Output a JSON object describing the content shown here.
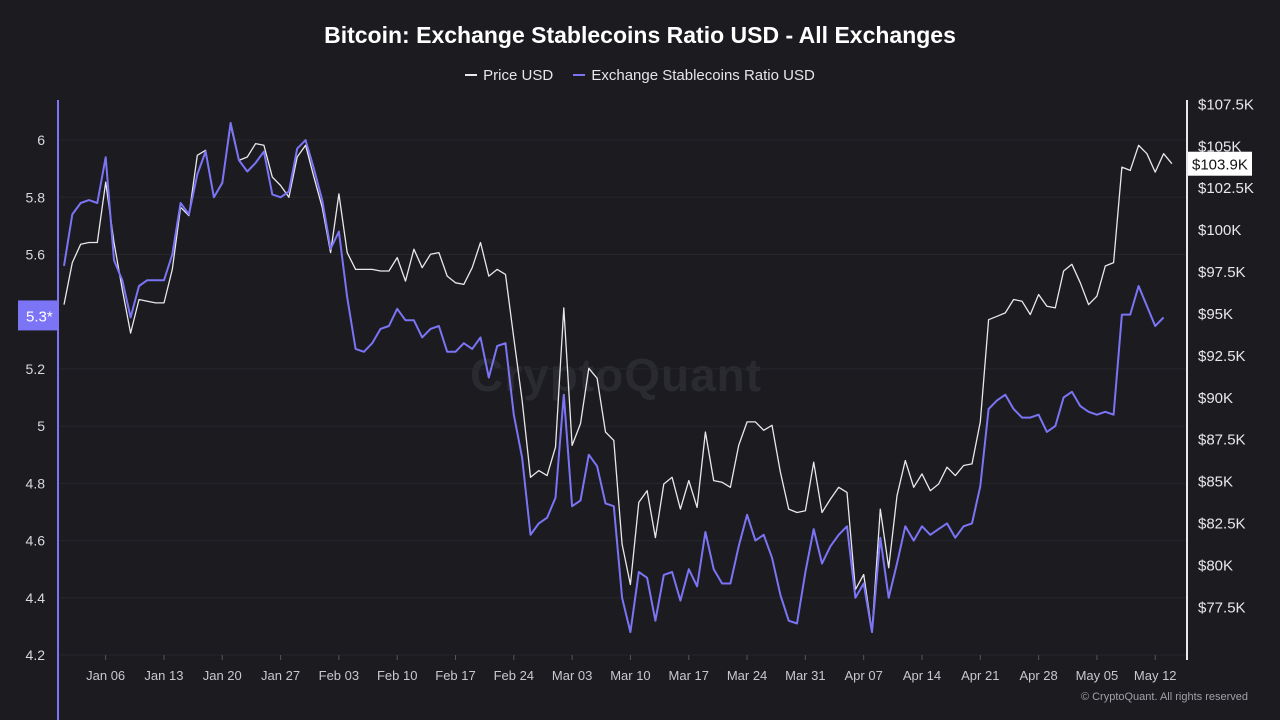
{
  "chart_data": {
    "type": "line",
    "title": "Bitcoin: Exchange Stablecoins Ratio USD - All Exchanges",
    "legend_position": "top",
    "grid": true,
    "x": [
      "Jan 01",
      "Jan 02",
      "Jan 03",
      "Jan 04",
      "Jan 05",
      "Jan 06",
      "Jan 07",
      "Jan 08",
      "Jan 09",
      "Jan 10",
      "Jan 11",
      "Jan 12",
      "Jan 13",
      "Jan 14",
      "Jan 15",
      "Jan 16",
      "Jan 17",
      "Jan 18",
      "Jan 19",
      "Jan 20",
      "Jan 21",
      "Jan 22",
      "Jan 23",
      "Jan 24",
      "Jan 25",
      "Jan 26",
      "Jan 27",
      "Jan 28",
      "Jan 29",
      "Jan 30",
      "Jan 31",
      "Feb 01",
      "Feb 02",
      "Feb 03",
      "Feb 04",
      "Feb 05",
      "Feb 06",
      "Feb 07",
      "Feb 08",
      "Feb 09",
      "Feb 10",
      "Feb 11",
      "Feb 12",
      "Feb 13",
      "Feb 14",
      "Feb 15",
      "Feb 16",
      "Feb 17",
      "Feb 18",
      "Feb 19",
      "Feb 20",
      "Feb 21",
      "Feb 22",
      "Feb 23",
      "Feb 24",
      "Feb 25",
      "Feb 26",
      "Feb 27",
      "Feb 28",
      "Mar 01",
      "Mar 02",
      "Mar 03",
      "Mar 04",
      "Mar 05",
      "Mar 06",
      "Mar 07",
      "Mar 08",
      "Mar 09",
      "Mar 10",
      "Mar 11",
      "Mar 12",
      "Mar 13",
      "Mar 14",
      "Mar 15",
      "Mar 16",
      "Mar 17",
      "Mar 18",
      "Mar 19",
      "Mar 20",
      "Mar 21",
      "Mar 22",
      "Mar 23",
      "Mar 24",
      "Mar 25",
      "Mar 26",
      "Mar 27",
      "Mar 28",
      "Mar 29",
      "Mar 30",
      "Mar 31",
      "Apr 01",
      "Apr 02",
      "Apr 03",
      "Apr 04",
      "Apr 05",
      "Apr 06",
      "Apr 07",
      "Apr 08",
      "Apr 09",
      "Apr 10",
      "Apr 11",
      "Apr 12",
      "Apr 13",
      "Apr 14",
      "Apr 15",
      "Apr 16",
      "Apr 17",
      "Apr 18",
      "Apr 19",
      "Apr 20",
      "Apr 21",
      "Apr 22",
      "Apr 23",
      "Apr 24",
      "Apr 25",
      "Apr 26",
      "Apr 27",
      "Apr 28",
      "Apr 29",
      "Apr 30",
      "May 01",
      "May 02",
      "May 03",
      "May 04",
      "May 05",
      "May 06",
      "May 07",
      "May 08",
      "May 09",
      "May 10",
      "May 11",
      "May 12",
      "May 13",
      "May 14"
    ],
    "x_ticks": [
      "Jan 06",
      "Jan 13",
      "Jan 20",
      "Jan 27",
      "Feb 03",
      "Feb 10",
      "Feb 17",
      "Feb 24",
      "Mar 03",
      "Mar 10",
      "Mar 17",
      "Mar 24",
      "Mar 31",
      "Apr 07",
      "Apr 14",
      "Apr 21",
      "Apr 28",
      "May 05",
      "May 12"
    ],
    "y_left": {
      "ticks": [
        "6",
        "5.8",
        "5.6",
        "5.2",
        "5",
        "4.8",
        "4.6",
        "4.4",
        "4.2"
      ],
      "tick_values": [
        6,
        5.8,
        5.6,
        5.2,
        5,
        4.8,
        4.6,
        4.4,
        4.2
      ],
      "range": [
        4.2,
        6.14
      ],
      "current_label": "5.3*",
      "color": "#7b74f5"
    },
    "y_right": {
      "ticks": [
        "$107.5K",
        "$105K",
        "$102.5K",
        "$100K",
        "$97.5K",
        "$95K",
        "$92.5K",
        "$90K",
        "$87.5K",
        "$85K",
        "$82.5K",
        "$80K",
        "$77.5K"
      ],
      "tick_values": [
        107.5,
        105,
        102.5,
        100,
        97.5,
        95,
        92.5,
        90,
        87.5,
        85,
        82.5,
        80,
        77.5
      ],
      "range": [
        74.6,
        107.7
      ],
      "unit": "K USD",
      "current_label": "$103.9K"
    },
    "series": [
      {
        "name": "Price USD",
        "axis": "right",
        "color": "#e8e8ec",
        "values": [
          95.5,
          98.0,
          99.1,
          99.2,
          99.2,
          102.8,
          99.2,
          96.4,
          93.8,
          95.8,
          95.7,
          95.6,
          95.6,
          97.6,
          101.3,
          100.8,
          104.4,
          104.7,
          101.9,
          102.8,
          106.2,
          104.1,
          104.3,
          105.1,
          105.0,
          103.1,
          102.6,
          101.9,
          104.3,
          105.0,
          103.1,
          101.3,
          98.6,
          102.1,
          98.6,
          97.6,
          97.6,
          97.6,
          97.5,
          97.5,
          98.3,
          96.9,
          98.8,
          97.7,
          98.5,
          98.6,
          97.2,
          96.8,
          96.7,
          97.7,
          99.2,
          97.2,
          97.6,
          97.3,
          93.5,
          89.8,
          85.2,
          85.6,
          85.3,
          87.0,
          95.3,
          87.1,
          88.4,
          91.7,
          91.1,
          87.9,
          87.4,
          81.2,
          78.8,
          83.7,
          84.4,
          81.6,
          84.8,
          85.2,
          83.3,
          85.0,
          83.4,
          87.9,
          85.0,
          84.9,
          84.6,
          87.1,
          88.5,
          88.5,
          88.0,
          88.3,
          85.5,
          83.3,
          83.1,
          83.2,
          86.1,
          83.1,
          83.9,
          84.6,
          84.3,
          78.5,
          79.4,
          76.0,
          83.3,
          79.8,
          84.1,
          86.2,
          84.6,
          85.4,
          84.4,
          84.8,
          85.8,
          85.3,
          85.9,
          86.0,
          88.5,
          94.6,
          94.8,
          95.0,
          95.8,
          95.7,
          94.9,
          96.1,
          95.4,
          95.3,
          97.5,
          97.9,
          96.8,
          95.5,
          96.0,
          97.8,
          98.0,
          103.7,
          103.5,
          105.0,
          104.5,
          103.4,
          104.5,
          103.9
        ]
      },
      {
        "name": "Exchange Stablecoins Ratio USD",
        "axis": "left",
        "color": "#7b74f5",
        "values": [
          5.56,
          5.74,
          5.78,
          5.79,
          5.78,
          5.94,
          5.58,
          5.51,
          5.38,
          5.49,
          5.51,
          5.51,
          5.51,
          5.6,
          5.78,
          5.74,
          5.88,
          5.96,
          5.8,
          5.85,
          6.06,
          5.93,
          5.89,
          5.92,
          5.96,
          5.81,
          5.8,
          5.82,
          5.97,
          6.0,
          5.9,
          5.79,
          5.62,
          5.68,
          5.45,
          5.27,
          5.26,
          5.29,
          5.34,
          5.35,
          5.41,
          5.37,
          5.37,
          5.31,
          5.34,
          5.35,
          5.26,
          5.26,
          5.29,
          5.27,
          5.31,
          5.17,
          5.28,
          5.29,
          5.04,
          4.89,
          4.62,
          4.66,
          4.68,
          4.75,
          5.11,
          4.72,
          4.74,
          4.9,
          4.86,
          4.73,
          4.72,
          4.4,
          4.28,
          4.49,
          4.47,
          4.32,
          4.48,
          4.49,
          4.39,
          4.5,
          4.44,
          4.63,
          4.5,
          4.45,
          4.45,
          4.58,
          4.69,
          4.6,
          4.62,
          4.54,
          4.41,
          4.32,
          4.31,
          4.49,
          4.64,
          4.52,
          4.58,
          4.62,
          4.65,
          4.4,
          4.45,
          4.28,
          4.61,
          4.4,
          4.52,
          4.65,
          4.6,
          4.65,
          4.62,
          4.64,
          4.66,
          4.61,
          4.65,
          4.66,
          4.79,
          5.06,
          5.09,
          5.11,
          5.06,
          5.03,
          5.03,
          5.04,
          4.98,
          5.0,
          5.1,
          5.12,
          5.07,
          5.05,
          5.04,
          5.05,
          5.04,
          5.39,
          5.39,
          5.49,
          5.42,
          5.35,
          5.38,
          null
        ]
      }
    ]
  },
  "watermark": "CryptoQuant",
  "copyright": "© CryptoQuant. All rights reserved"
}
